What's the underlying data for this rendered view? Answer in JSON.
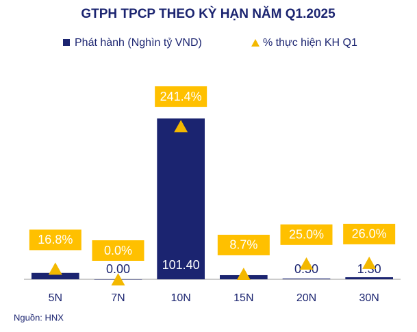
{
  "chart_data": {
    "type": "bar",
    "title": "GTPH TPCP THEO KỲ HẠN NĂM Q1.2025",
    "categories": [
      "5N",
      "7N",
      "10N",
      "15N",
      "20N",
      "30N"
    ],
    "series": [
      {
        "name": "Phát hành (Nghìn tỷ VND)",
        "color": "#1b2470",
        "values": [
          4,
          0,
          101.4,
          2.6,
          0.5,
          1.3
        ],
        "value_labels": [
          null,
          "0.00",
          "101.40",
          null,
          "0.50",
          "1.30"
        ]
      },
      {
        "name": "% thực hiện KH Q1",
        "color": "#f3b800",
        "axis": "y2",
        "marker": "triangle",
        "values": [
          16.8,
          0,
          241.4,
          8.7,
          25,
          26
        ],
        "value_labels": [
          "16.8%",
          "0.0%",
          "241.4%",
          "8.7%",
          "25.0%",
          "26.0%"
        ]
      }
    ],
    "ylim": [
      0,
      120
    ],
    "y2lim": [
      0,
      300
    ],
    "source": "Nguồn: HNX"
  }
}
